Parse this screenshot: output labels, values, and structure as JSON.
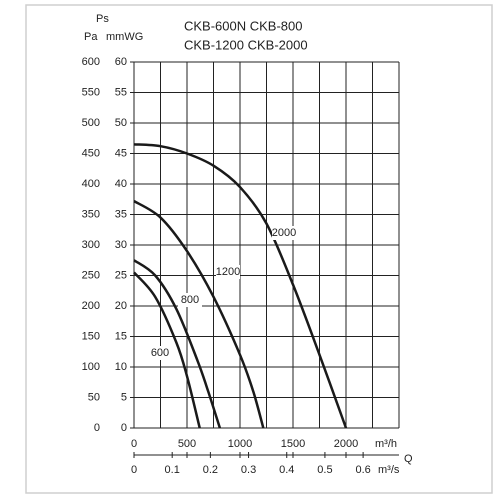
{
  "chart_data": {
    "type": "line",
    "title_lines": [
      "CKB-600N   CKB-800",
      "CKB-1200   CKB-2000"
    ],
    "y_label": "Ps",
    "y_unit": "Pa",
    "y2_unit": "mmWG",
    "x_label": "Q",
    "x_unit": "m³/h",
    "x2_unit": "m³/s",
    "xlim": [
      0,
      2500
    ],
    "xticks": [
      0,
      500,
      1000,
      1500,
      2000
    ],
    "xgrid": [
      0,
      250,
      500,
      750,
      1000,
      1250,
      1500,
      1750,
      2000,
      2250,
      2500
    ],
    "x2lim": [
      0,
      0.694
    ],
    "x2ticks": [
      0,
      0.1,
      0.2,
      0.3,
      0.4,
      0.5,
      0.6
    ],
    "ylim": [
      0,
      600
    ],
    "yticks": [
      0,
      50,
      100,
      150,
      200,
      250,
      300,
      350,
      400,
      450,
      500,
      550,
      600
    ],
    "y2lim": [
      0,
      60
    ],
    "y2ticks": [
      0,
      5,
      10,
      15,
      20,
      25,
      30,
      35,
      40,
      45,
      50,
      55,
      60
    ],
    "grid": true,
    "series": [
      {
        "name": "600",
        "color": "#1a1a1a",
        "x": [
          0,
          200,
          400,
          500,
          620
        ],
        "values": [
          255,
          215,
          140,
          85,
          0
        ]
      },
      {
        "name": "800",
        "color": "#1a1a1a",
        "x": [
          0,
          200,
          400,
          600,
          700,
          810
        ],
        "values": [
          275,
          250,
          195,
          110,
          60,
          0
        ]
      },
      {
        "name": "1200",
        "color": "#1a1a1a",
        "x": [
          0,
          250,
          500,
          750,
          1000,
          1125,
          1220
        ],
        "values": [
          372,
          345,
          290,
          215,
          120,
          60,
          0
        ]
      },
      {
        "name": "2000",
        "color": "#1a1a1a",
        "x": [
          0,
          250,
          500,
          750,
          1000,
          1250,
          1500,
          1750,
          2000
        ],
        "values": [
          465,
          462,
          450,
          430,
          395,
          335,
          235,
          120,
          0
        ]
      }
    ]
  }
}
